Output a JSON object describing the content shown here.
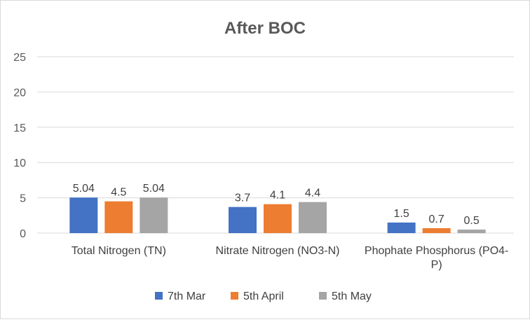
{
  "chart_data": {
    "type": "bar",
    "title": "After BOC",
    "xlabel": "",
    "ylabel": "",
    "ylim": [
      0,
      25
    ],
    "yticks": [
      0,
      5,
      10,
      15,
      20,
      25
    ],
    "grid": true,
    "legend_position": "bottom",
    "categories": [
      [
        "Total Nitrogen (TN)"
      ],
      [
        "Nitrate Nitrogen (NO3-N)"
      ],
      [
        "Phophate Phosphorus (PO4-",
        "P)"
      ]
    ],
    "series": [
      {
        "name": "7th Mar",
        "color": "#4472c4",
        "values": [
          5.04,
          3.7,
          1.5
        ],
        "labels": [
          "5.04",
          "3.7",
          "1.5"
        ]
      },
      {
        "name": "5th April",
        "color": "#ed7d31",
        "values": [
          4.5,
          4.1,
          0.7
        ],
        "labels": [
          "4.5",
          "4.1",
          "0.7"
        ]
      },
      {
        "name": "5th May",
        "color": "#a5a5a5",
        "values": [
          5.04,
          4.4,
          0.5
        ],
        "labels": [
          "5.04",
          "4.4",
          "0.5"
        ]
      }
    ]
  }
}
